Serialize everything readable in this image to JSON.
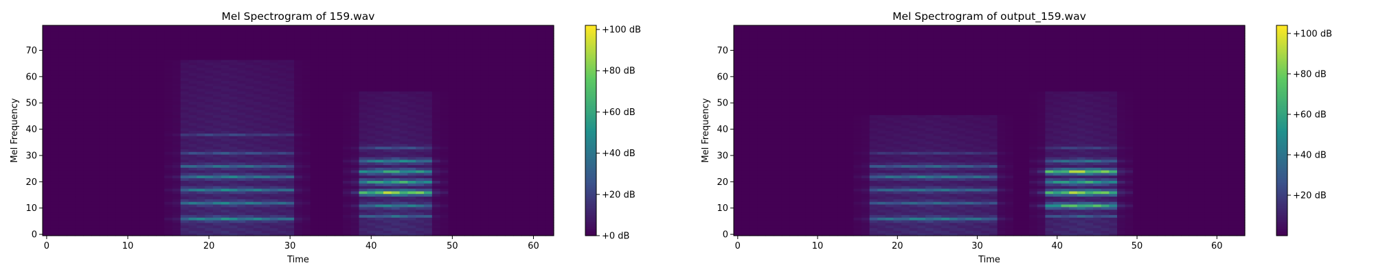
{
  "figure": {
    "background": "#ffffff",
    "colormap": "viridis",
    "colormap_stops": [
      "#440154",
      "#3b528b",
      "#21918c",
      "#5ec962",
      "#fde725"
    ]
  },
  "chart_data": [
    {
      "type": "heatmap",
      "title": "Mel Spectrogram of 159.wav",
      "xlabel": "Time",
      "ylabel": "Mel Frequency",
      "xlim": [
        -0.5,
        62.5
      ],
      "ylim": [
        -0.5,
        79.5
      ],
      "xticks": [
        0,
        10,
        20,
        30,
        40,
        50,
        60
      ],
      "yticks": [
        0,
        10,
        20,
        30,
        40,
        50,
        60,
        70
      ],
      "colorbar": {
        "range": [
          0,
          102
        ],
        "ticks": [
          0,
          20,
          40,
          60,
          80,
          100
        ],
        "tick_labels": [
          "+0 dB",
          "+20 dB",
          "+40 dB",
          "+60 dB",
          "+80 dB",
          "+100 dB"
        ]
      },
      "segments": [
        {
          "t": [
            17,
            30
          ],
          "peak_t": 22,
          "max_mel": 66,
          "harmonics": [
            {
              "mel": 6,
              "db": 55
            },
            {
              "mel": 12,
              "db": 50
            },
            {
              "mel": 17,
              "db": 52
            },
            {
              "mel": 22,
              "db": 50
            },
            {
              "mel": 26,
              "db": 42
            },
            {
              "mel": 31,
              "db": 30
            },
            {
              "mel": 38,
              "db": 25
            }
          ]
        },
        {
          "t": [
            39,
            47
          ],
          "peak_t": 43,
          "max_mel": 54,
          "harmonics": [
            {
              "mel": 7,
              "db": 40
            },
            {
              "mel": 11,
              "db": 52
            },
            {
              "mel": 16,
              "db": 98
            },
            {
              "mel": 20,
              "db": 72
            },
            {
              "mel": 24,
              "db": 68
            },
            {
              "mel": 28,
              "db": 55
            },
            {
              "mel": 33,
              "db": 30
            }
          ]
        }
      ]
    },
    {
      "type": "heatmap",
      "title": "Mel Spectrogram of output_159.wav",
      "xlabel": "Time",
      "ylabel": "Mel Frequency",
      "xlim": [
        -0.5,
        63.5
      ],
      "ylim": [
        -0.5,
        79.5
      ],
      "xticks": [
        0,
        10,
        20,
        30,
        40,
        50,
        60
      ],
      "yticks": [
        0,
        10,
        20,
        30,
        40,
        50,
        60,
        70
      ],
      "colorbar": {
        "range": [
          0,
          104
        ],
        "ticks": [
          20,
          40,
          60,
          80,
          100
        ],
        "tick_labels": [
          "+20 dB",
          "+40 dB",
          "+60 dB",
          "+80 dB",
          "+100 dB"
        ]
      },
      "segments": [
        {
          "t": [
            17,
            32
          ],
          "peak_t": 24,
          "max_mel": 45,
          "harmonics": [
            {
              "mel": 6,
              "db": 50
            },
            {
              "mel": 12,
              "db": 40
            },
            {
              "mel": 17,
              "db": 45
            },
            {
              "mel": 22,
              "db": 48
            },
            {
              "mel": 26,
              "db": 38
            },
            {
              "mel": 31,
              "db": 22
            }
          ]
        },
        {
          "t": [
            39,
            47
          ],
          "peak_t": 43,
          "max_mel": 54,
          "harmonics": [
            {
              "mel": 7,
              "db": 35
            },
            {
              "mel": 11,
              "db": 85
            },
            {
              "mel": 16,
              "db": 98
            },
            {
              "mel": 20,
              "db": 70
            },
            {
              "mel": 24,
              "db": 100
            },
            {
              "mel": 28,
              "db": 45
            },
            {
              "mel": 33,
              "db": 25
            }
          ]
        }
      ]
    }
  ]
}
